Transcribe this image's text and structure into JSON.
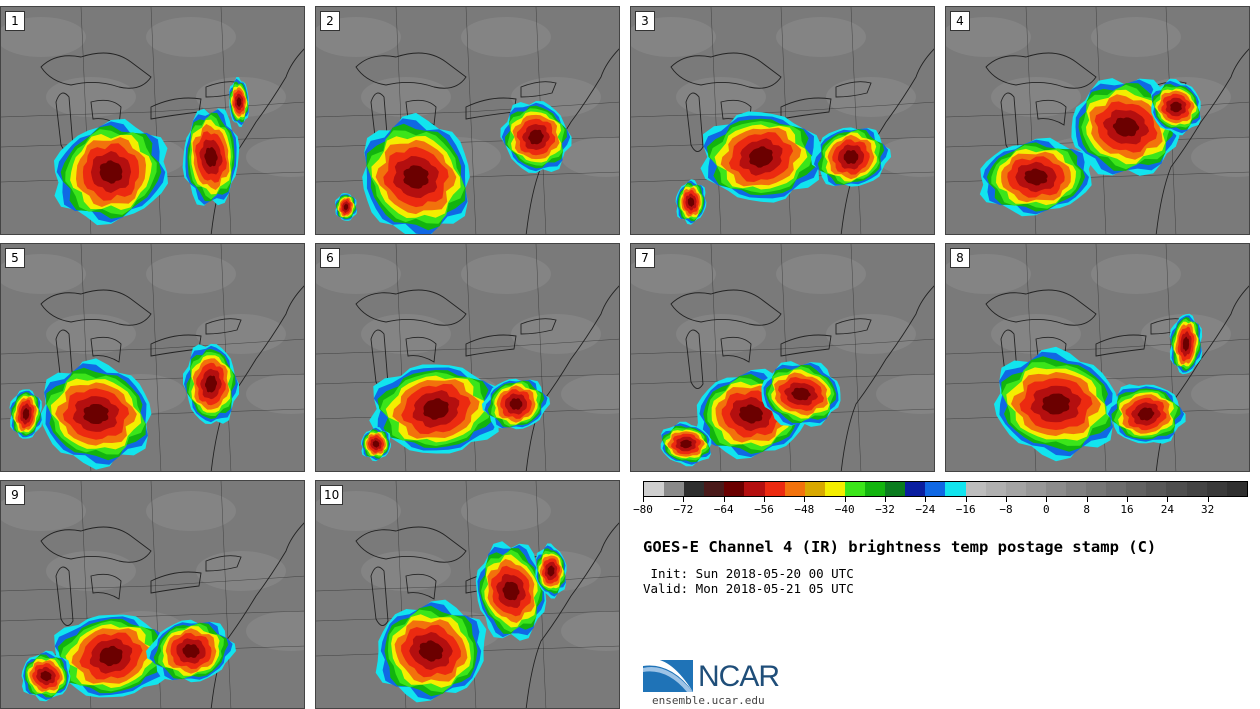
{
  "panels": [
    {
      "label": "1",
      "lobes": [
        [
          110,
          165,
          55,
          48
        ],
        [
          210,
          150,
          28,
          45
        ],
        [
          238,
          95,
          10,
          22
        ]
      ]
    },
    {
      "label": "2",
      "lobes": [
        [
          100,
          170,
          55,
          55
        ],
        [
          220,
          130,
          32,
          35
        ],
        [
          30,
          200,
          10,
          14
        ]
      ]
    },
    {
      "label": "3",
      "lobes": [
        [
          130,
          150,
          55,
          45
        ],
        [
          220,
          150,
          35,
          30
        ],
        [
          60,
          195,
          15,
          20
        ]
      ]
    },
    {
      "label": "4",
      "lobes": [
        [
          90,
          170,
          55,
          35
        ],
        [
          180,
          120,
          55,
          45
        ],
        [
          230,
          100,
          25,
          25
        ]
      ]
    },
    {
      "label": "5",
      "lobes": [
        [
          95,
          170,
          55,
          48
        ],
        [
          210,
          140,
          25,
          40
        ],
        [
          25,
          170,
          15,
          25
        ]
      ]
    },
    {
      "label": "6",
      "lobes": [
        [
          120,
          165,
          60,
          45
        ],
        [
          200,
          160,
          30,
          25
        ],
        [
          60,
          200,
          15,
          15
        ]
      ]
    },
    {
      "label": "7",
      "lobes": [
        [
          120,
          170,
          55,
          40
        ],
        [
          170,
          150,
          40,
          30
        ],
        [
          55,
          200,
          25,
          20
        ]
      ]
    },
    {
      "label": "8",
      "lobes": [
        [
          110,
          160,
          60,
          50
        ],
        [
          200,
          170,
          35,
          30
        ],
        [
          240,
          100,
          15,
          30
        ]
      ]
    },
    {
      "label": "9",
      "lobes": [
        [
          110,
          175,
          55,
          42
        ],
        [
          190,
          170,
          40,
          30
        ],
        [
          45,
          195,
          25,
          22
        ]
      ]
    },
    {
      "label": "10",
      "lobes": [
        [
          115,
          170,
          55,
          45
        ],
        [
          195,
          110,
          35,
          45
        ],
        [
          235,
          90,
          15,
          25
        ]
      ]
    }
  ],
  "colorbar": {
    "colors": [
      "#cfcfcf",
      "#8a8a8a",
      "#2e2e2e",
      "#4a1a1a",
      "#6b0000",
      "#b40f0f",
      "#ec2a10",
      "#f2720c",
      "#d8a800",
      "#f4ee00",
      "#3be51a",
      "#12b40e",
      "#0a7c1e",
      "#0a1ea0",
      "#1068e4",
      "#12e4ee",
      "#bdbdbd",
      "#b0b0b0",
      "#a4a4a4",
      "#989898",
      "#8c8c8c",
      "#808080",
      "#767676",
      "#6c6c6c",
      "#626262",
      "#585858",
      "#4e4e4e",
      "#444444",
      "#3a3a3a",
      "#303030"
    ],
    "ticks": [
      "−80",
      "−72",
      "−64",
      "−56",
      "−48",
      "−40",
      "−32",
      "−24",
      "−16",
      "−8",
      "0",
      "8",
      "16",
      "24",
      "32"
    ]
  },
  "title": "GOES-E Channel 4 (IR) brightness temp postage stamp (C)",
  "init_line": " Init: Sun 2018-05-20 00 UTC",
  "valid_line": "Valid: Mon 2018-05-21 05 UTC",
  "logo_text": "NCAR",
  "site": "ensemble.ucar.edu",
  "colors": {
    "map_bg": "#7a7a7a",
    "land_light": "#8c8c8c",
    "outline": "#1a1a1a",
    "brand": "#1f4e79"
  }
}
